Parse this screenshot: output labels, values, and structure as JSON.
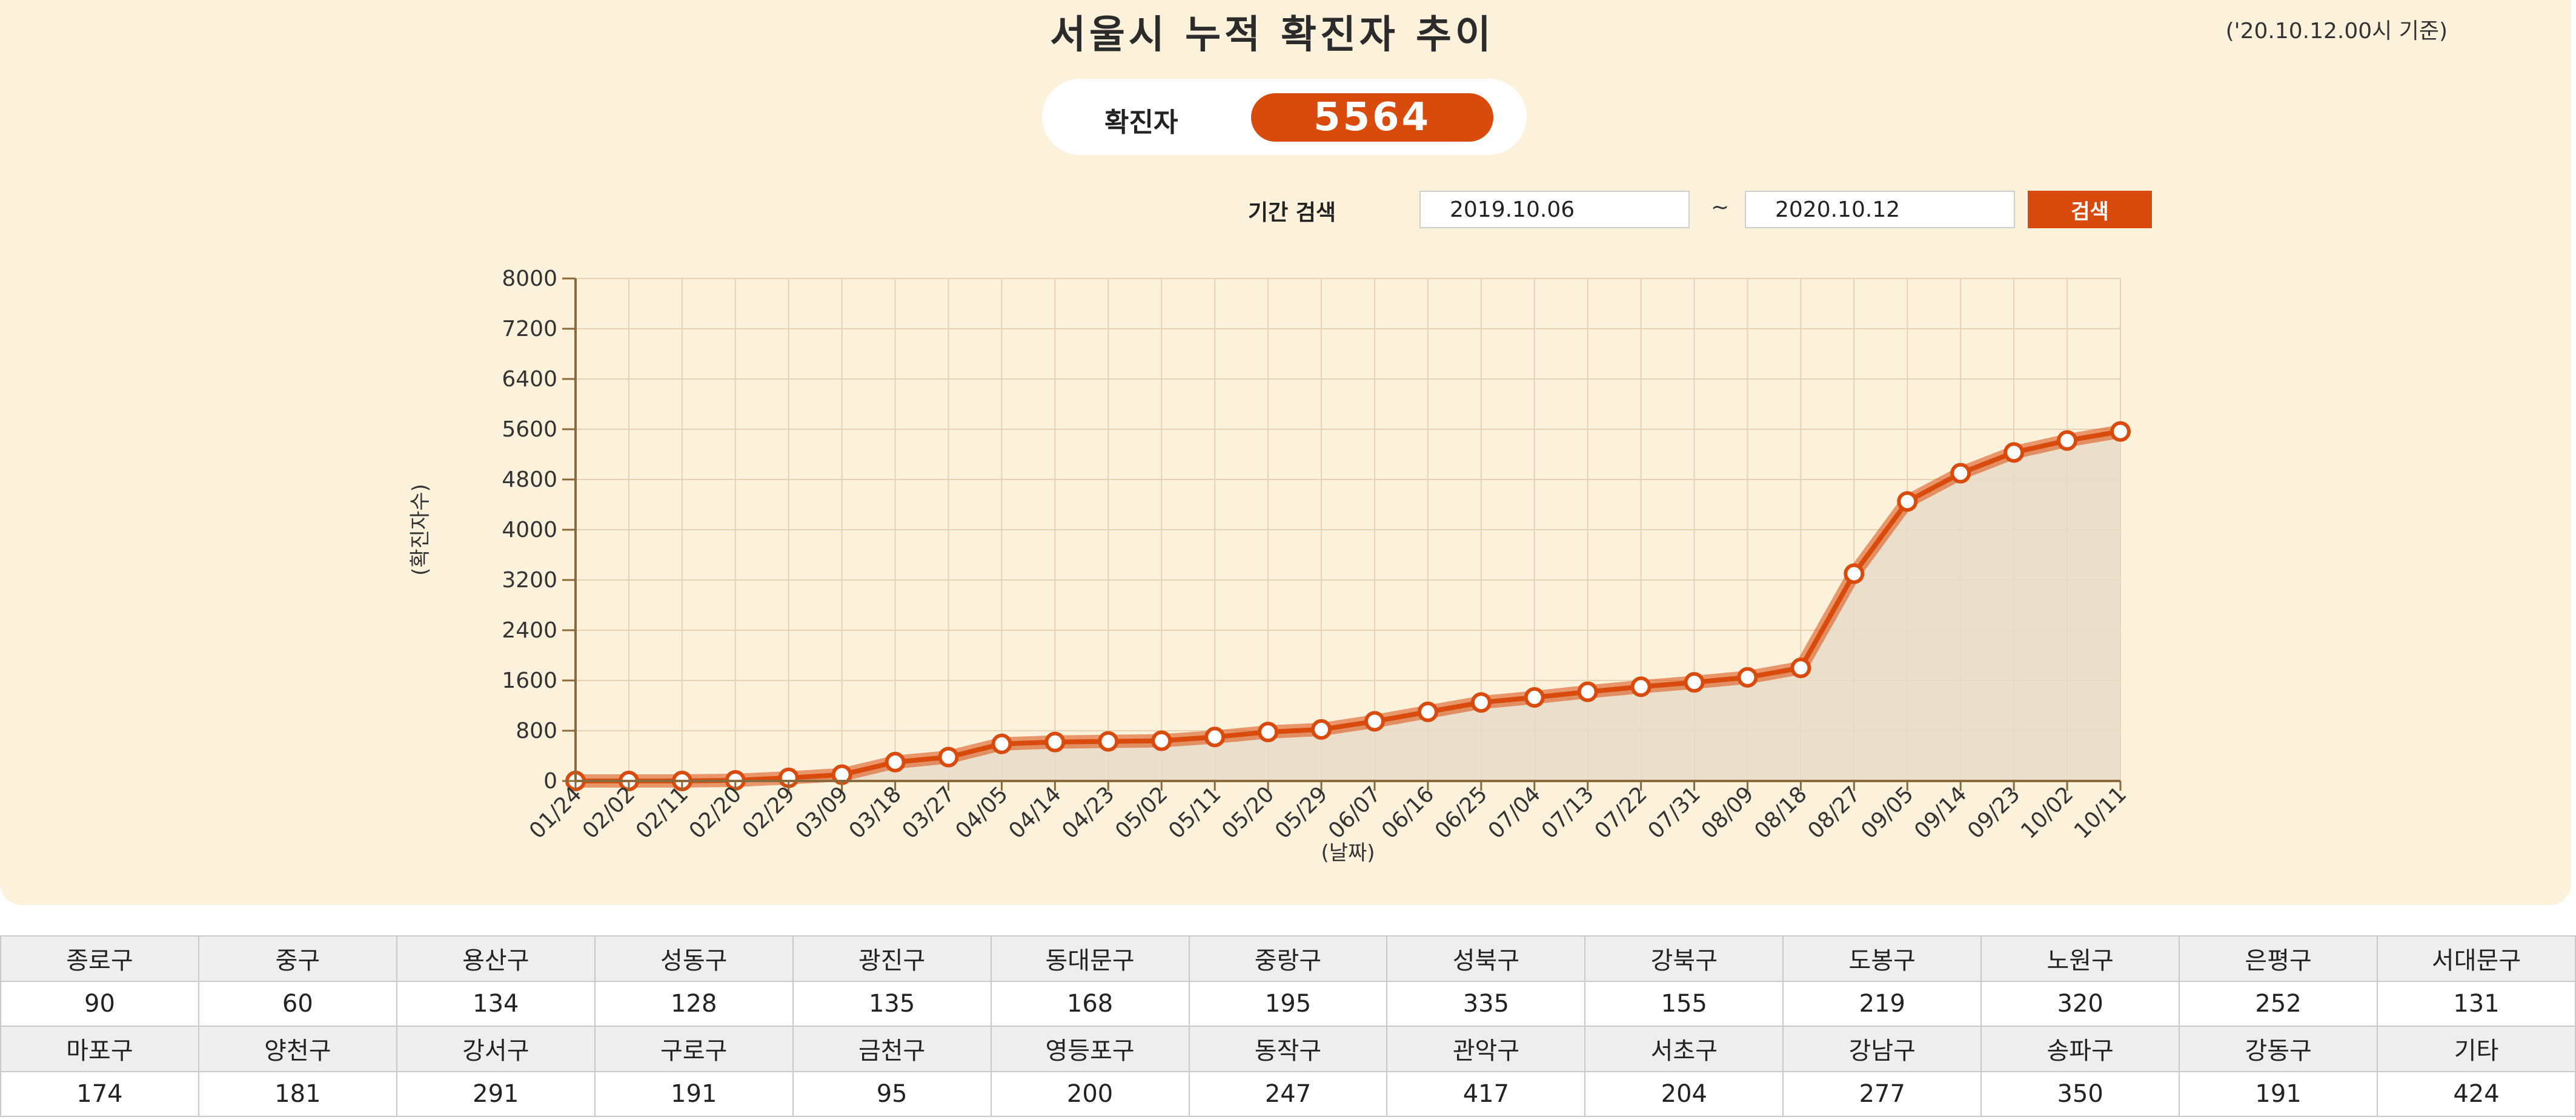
{
  "header": {
    "title": "서울시 누적 확진자 추이",
    "basis": "('20.10.12.00시 기준)"
  },
  "summary": {
    "label": "확진자",
    "count": "5564"
  },
  "search": {
    "label": "기간 검색",
    "start": "2019.10.06",
    "separator": "~",
    "end": "2020.10.12",
    "button": "검색"
  },
  "colors": {
    "accent": "#d94b0c",
    "panel_bg": "#fcf1db",
    "area_fill": "#e7dcc9"
  },
  "chart_data": {
    "type": "area",
    "title": "",
    "xlabel": "(날짜)",
    "ylabel": "(확진자수)",
    "ylim": [
      0,
      8000
    ],
    "y_ticks": [
      0,
      800,
      1600,
      2400,
      3200,
      4000,
      4800,
      5600,
      6400,
      7200,
      8000
    ],
    "x_ticks": [
      "01/24",
      "02/02",
      "02/11",
      "02/20",
      "02/29",
      "03/09",
      "03/18",
      "03/27",
      "04/05",
      "04/14",
      "04/23",
      "05/02",
      "05/11",
      "05/20",
      "05/29",
      "06/07",
      "06/16",
      "06/25",
      "07/04",
      "07/13",
      "07/22",
      "07/31",
      "08/09",
      "08/18",
      "08/27",
      "09/05",
      "09/14",
      "09/23",
      "10/02",
      "10/11"
    ],
    "grid": true,
    "series": [
      {
        "values": [
          0,
          0,
          0,
          10,
          50,
          100,
          300,
          380,
          590,
          620,
          630,
          640,
          700,
          780,
          820,
          950,
          1100,
          1250,
          1330,
          1420,
          1500,
          1570,
          1650,
          1800,
          3300,
          4450,
          4900,
          5230,
          5420,
          5564
        ]
      }
    ]
  },
  "districts": {
    "row1_names": [
      "종로구",
      "중구",
      "용산구",
      "성동구",
      "광진구",
      "동대문구",
      "중랑구",
      "성북구",
      "강북구",
      "도봉구",
      "노원구",
      "은평구",
      "서대문구"
    ],
    "row1_values": [
      "90",
      "60",
      "134",
      "128",
      "135",
      "168",
      "195",
      "335",
      "155",
      "219",
      "320",
      "252",
      "131"
    ],
    "row2_names": [
      "마포구",
      "양천구",
      "강서구",
      "구로구",
      "금천구",
      "영등포구",
      "동작구",
      "관악구",
      "서초구",
      "강남구",
      "송파구",
      "강동구",
      "기타"
    ],
    "row2_values": [
      "174",
      "181",
      "291",
      "191",
      "95",
      "200",
      "247",
      "417",
      "204",
      "277",
      "350",
      "191",
      "424"
    ]
  }
}
